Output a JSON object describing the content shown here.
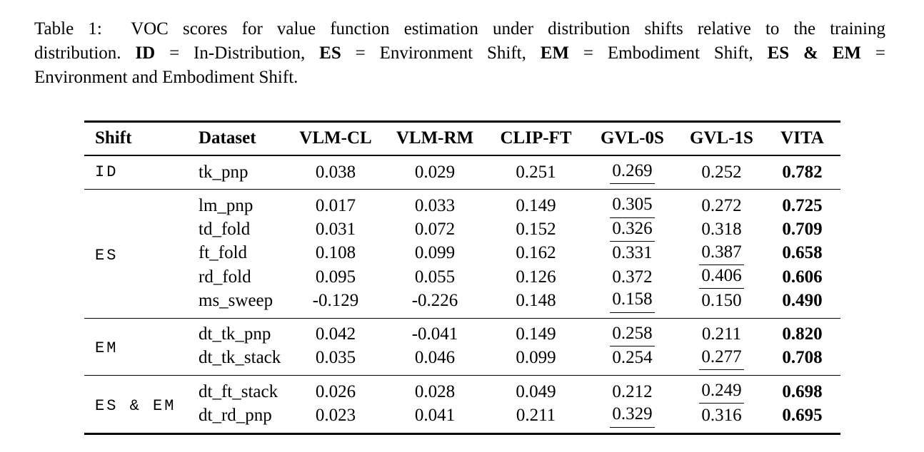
{
  "colors": {
    "text": "#000000",
    "background": "#ffffff",
    "rule": "#000000"
  },
  "caption": {
    "lines": [
      {
        "segments": [
          {
            "text": "Table 1:  VOC scores for value function estimation under distribution shifts relative to the training",
            "bold": false
          }
        ]
      },
      {
        "segments": [
          {
            "text": "distribution. ",
            "bold": false
          },
          {
            "text": "ID",
            "bold": true
          },
          {
            "text": " = In-Distribution, ",
            "bold": false
          },
          {
            "text": "ES",
            "bold": true
          },
          {
            "text": " = Environment Shift, ",
            "bold": false
          },
          {
            "text": "EM",
            "bold": true
          },
          {
            "text": " = Embodiment Shift, ",
            "bold": false
          },
          {
            "text": "ES & EM",
            "bold": true
          },
          {
            "text": " =",
            "bold": false
          }
        ]
      },
      {
        "segments": [
          {
            "text": "Environment and Embodiment Shift.",
            "bold": false
          }
        ]
      }
    ]
  },
  "table": {
    "columns": [
      "Shift",
      "Dataset",
      "VLM-CL",
      "VLM-RM",
      "CLIP-FT",
      "GVL-0S",
      "GVL-1S",
      "VITA"
    ],
    "legend": {
      "underline_means": "second-best score",
      "bold_means": "best score"
    },
    "groups": [
      {
        "shift": "ID",
        "rows": [
          {
            "dataset": "tk_pnp",
            "values": [
              "0.038",
              "0.029",
              "0.251",
              "0.269",
              "0.252",
              "0.782"
            ],
            "underline_index": 3,
            "bold_index": 5
          }
        ]
      },
      {
        "shift": "ES",
        "rows": [
          {
            "dataset": "lm_pnp",
            "values": [
              "0.017",
              "0.033",
              "0.149",
              "0.305",
              "0.272",
              "0.725"
            ],
            "underline_index": 3,
            "bold_index": 5
          },
          {
            "dataset": "td_fold",
            "values": [
              "0.031",
              "0.072",
              "0.152",
              "0.326",
              "0.318",
              "0.709"
            ],
            "underline_index": 3,
            "bold_index": 5
          },
          {
            "dataset": "ft_fold",
            "values": [
              "0.108",
              "0.099",
              "0.162",
              "0.331",
              "0.387",
              "0.658"
            ],
            "underline_index": 4,
            "bold_index": 5
          },
          {
            "dataset": "rd_fold",
            "values": [
              "0.095",
              "0.055",
              "0.126",
              "0.372",
              "0.406",
              "0.606"
            ],
            "underline_index": 4,
            "bold_index": 5
          },
          {
            "dataset": "ms_sweep",
            "values": [
              "-0.129",
              "-0.226",
              "0.148",
              "0.158",
              "0.150",
              "0.490"
            ],
            "underline_index": 3,
            "bold_index": 5
          }
        ]
      },
      {
        "shift": "EM",
        "rows": [
          {
            "dataset": "dt_tk_pnp",
            "values": [
              "0.042",
              "-0.041",
              "0.149",
              "0.258",
              "0.211",
              "0.820"
            ],
            "underline_index": 3,
            "bold_index": 5
          },
          {
            "dataset": "dt_tk_stack",
            "values": [
              "0.035",
              "0.046",
              "0.099",
              "0.254",
              "0.277",
              "0.708"
            ],
            "underline_index": 4,
            "bold_index": 5
          }
        ]
      },
      {
        "shift": "ES & EM",
        "rows": [
          {
            "dataset": "dt_ft_stack",
            "values": [
              "0.026",
              "0.028",
              "0.049",
              "0.212",
              "0.249",
              "0.698"
            ],
            "underline_index": 4,
            "bold_index": 5
          },
          {
            "dataset": "dt_rd_pnp",
            "values": [
              "0.023",
              "0.041",
              "0.211",
              "0.329",
              "0.316",
              "0.695"
            ],
            "underline_index": 3,
            "bold_index": 5
          }
        ]
      }
    ]
  }
}
